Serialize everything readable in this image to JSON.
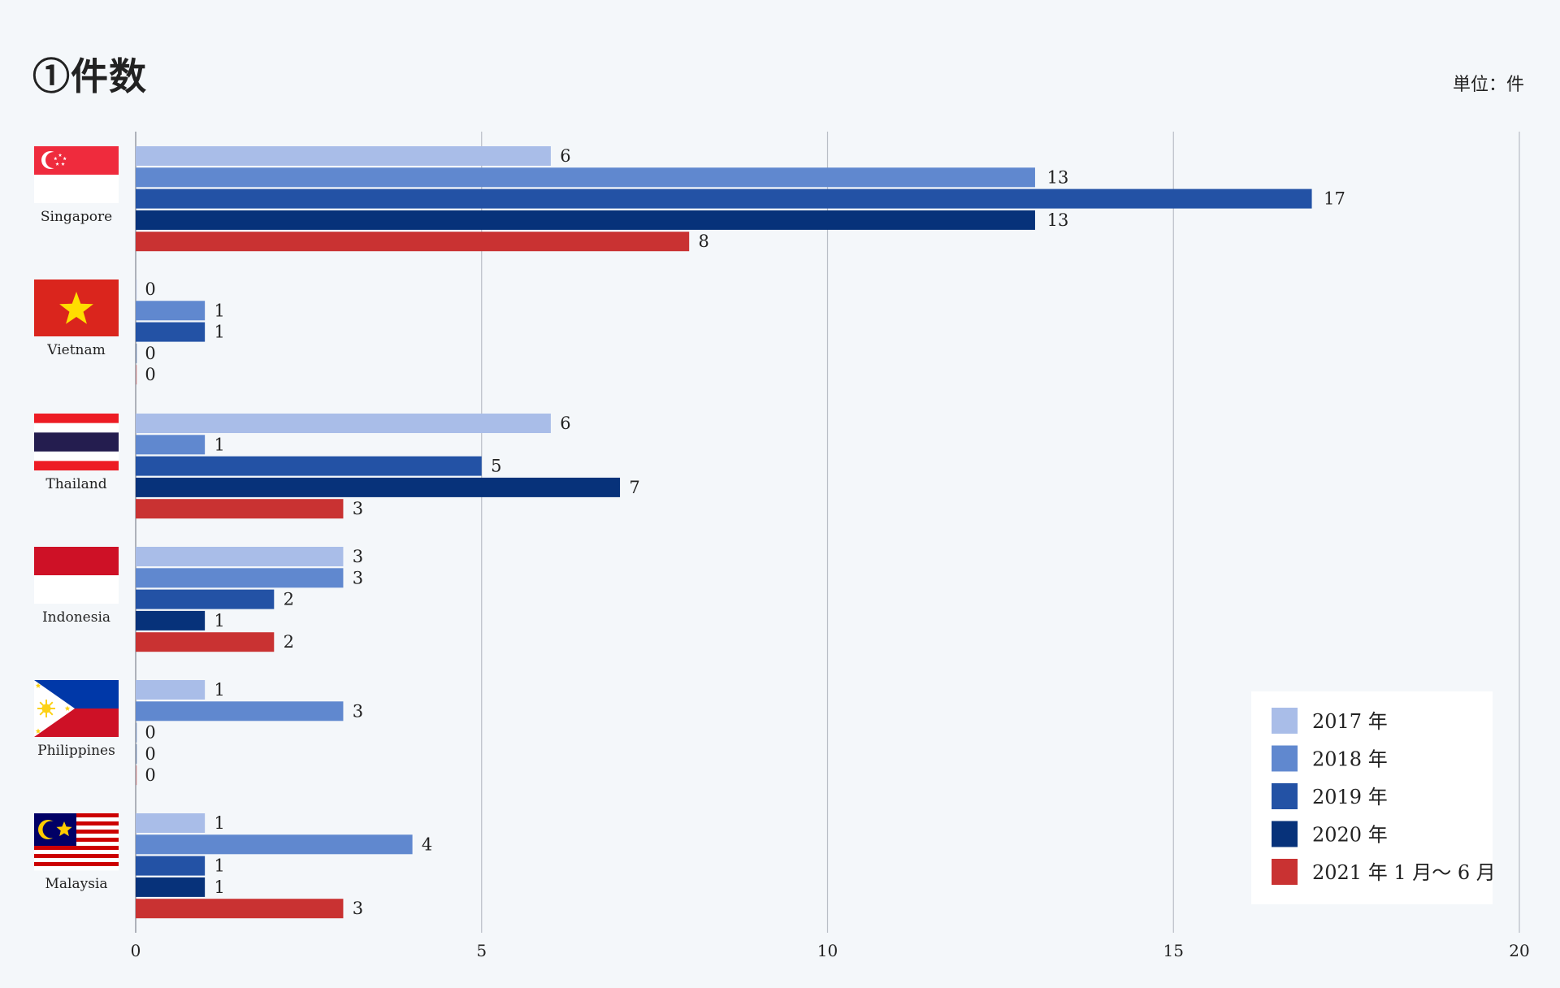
{
  "colors": {
    "background": "#f4f7fa",
    "gridline": "#b9bec6",
    "series": [
      "#a9bde8",
      "#6088cf",
      "#2352a5",
      "#07327a",
      "#c93232"
    ]
  },
  "chart_data": {
    "type": "bar",
    "orientation": "horizontal",
    "title": "①件数",
    "unit_label": "単位：件",
    "categories": [
      "Singapore",
      "Vietnam",
      "Thailand",
      "Indonesia",
      "Philippines",
      "Malaysia"
    ],
    "flag_icons": [
      "singapore-flag-icon",
      "vietnam-flag-icon",
      "thailand-flag-icon",
      "indonesia-flag-icon",
      "philippines-flag-icon",
      "malaysia-flag-icon"
    ],
    "series": [
      {
        "name": "2017 年",
        "values": [
          6,
          0,
          6,
          3,
          1,
          1
        ]
      },
      {
        "name": "2018 年",
        "values": [
          13,
          1,
          1,
          3,
          3,
          4
        ]
      },
      {
        "name": "2019 年",
        "values": [
          17,
          1,
          5,
          2,
          0,
          1
        ]
      },
      {
        "name": "2020 年",
        "values": [
          13,
          0,
          7,
          1,
          0,
          1
        ]
      },
      {
        "name": "2021 年 1 月〜 6 月",
        "values": [
          8,
          0,
          3,
          2,
          0,
          3
        ]
      }
    ],
    "xlim": [
      0,
      20
    ],
    "xticks": [
      0,
      5,
      10,
      15,
      20
    ],
    "grid": true,
    "data_labels": true,
    "legend_position": "bottom-right"
  }
}
